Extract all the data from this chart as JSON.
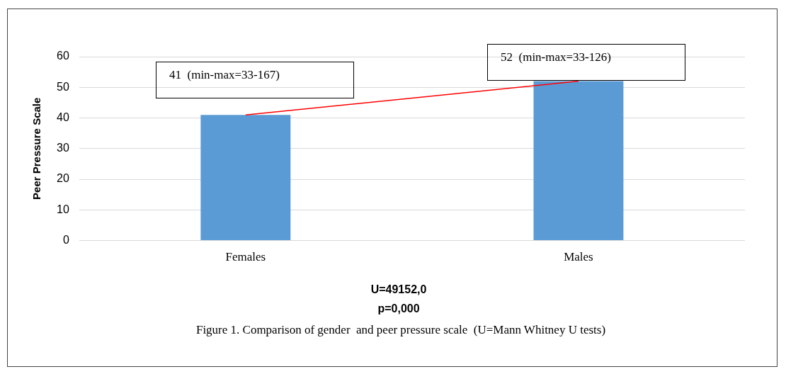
{
  "chart_data": {
    "type": "bar",
    "categories": [
      "Females",
      "Males"
    ],
    "series": [
      {
        "color": "#5b9bd5",
        "values": [
          41,
          52
        ]
      },
      {
        "type": "line",
        "color": "#ff0000",
        "values": [
          41,
          52
        ]
      }
    ],
    "ylabel": "Peer Pressure Scale",
    "ylim": [
      0,
      60
    ],
    "yticks": [
      0,
      10,
      20,
      30,
      40,
      50,
      60
    ],
    "grid": "y",
    "legend": false,
    "marker": "none",
    "annotations": [
      "41  (min-max=33-167)",
      "52  (min-max=33-126)",
      "U=49152,0",
      "p=0,000",
      "Figure 1. Comparison of gender  and peer pressure scale  (U=Mann Whitney U tests)"
    ]
  }
}
